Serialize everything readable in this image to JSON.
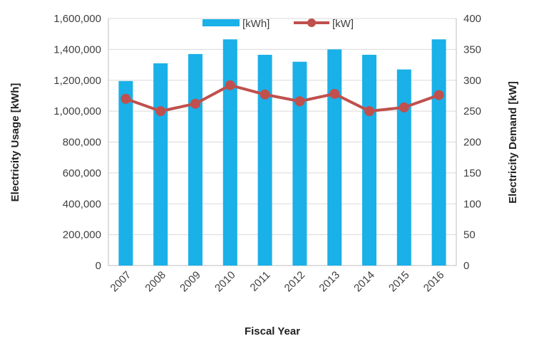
{
  "chart_data": {
    "type": "bar",
    "title": "",
    "xlabel": "Fiscal Year",
    "ylabel": "Electricity Usage [kWh]",
    "y2label": "Electricity Demand [kW]",
    "categories": [
      "2007",
      "2008",
      "2009",
      "2010",
      "2011",
      "2012",
      "2013",
      "2014",
      "2015",
      "2016"
    ],
    "ylim": [
      0,
      1600000
    ],
    "y2lim": [
      0,
      400
    ],
    "yticks": [
      "0",
      "200,000",
      "400,000",
      "600,000",
      "800,000",
      "1,000,000",
      "1,200,000",
      "1,400,000",
      "1,600,000"
    ],
    "y2ticks": [
      "0",
      "50",
      "100",
      "150",
      "200",
      "250",
      "300",
      "350",
      "400"
    ],
    "grid": true,
    "legend_position": "top-center",
    "series": [
      {
        "name": "[kWh]",
        "type": "bar",
        "axis": "left",
        "color": "#1ab0e8",
        "values": [
          1195000,
          1310000,
          1370000,
          1465000,
          1365000,
          1320000,
          1400000,
          1365000,
          1270000,
          1465000
        ]
      },
      {
        "name": "[kW]",
        "type": "line",
        "axis": "right",
        "color": "#c0504d",
        "values": [
          270,
          250,
          262,
          292,
          277,
          266,
          278,
          250,
          256,
          276
        ]
      }
    ]
  }
}
